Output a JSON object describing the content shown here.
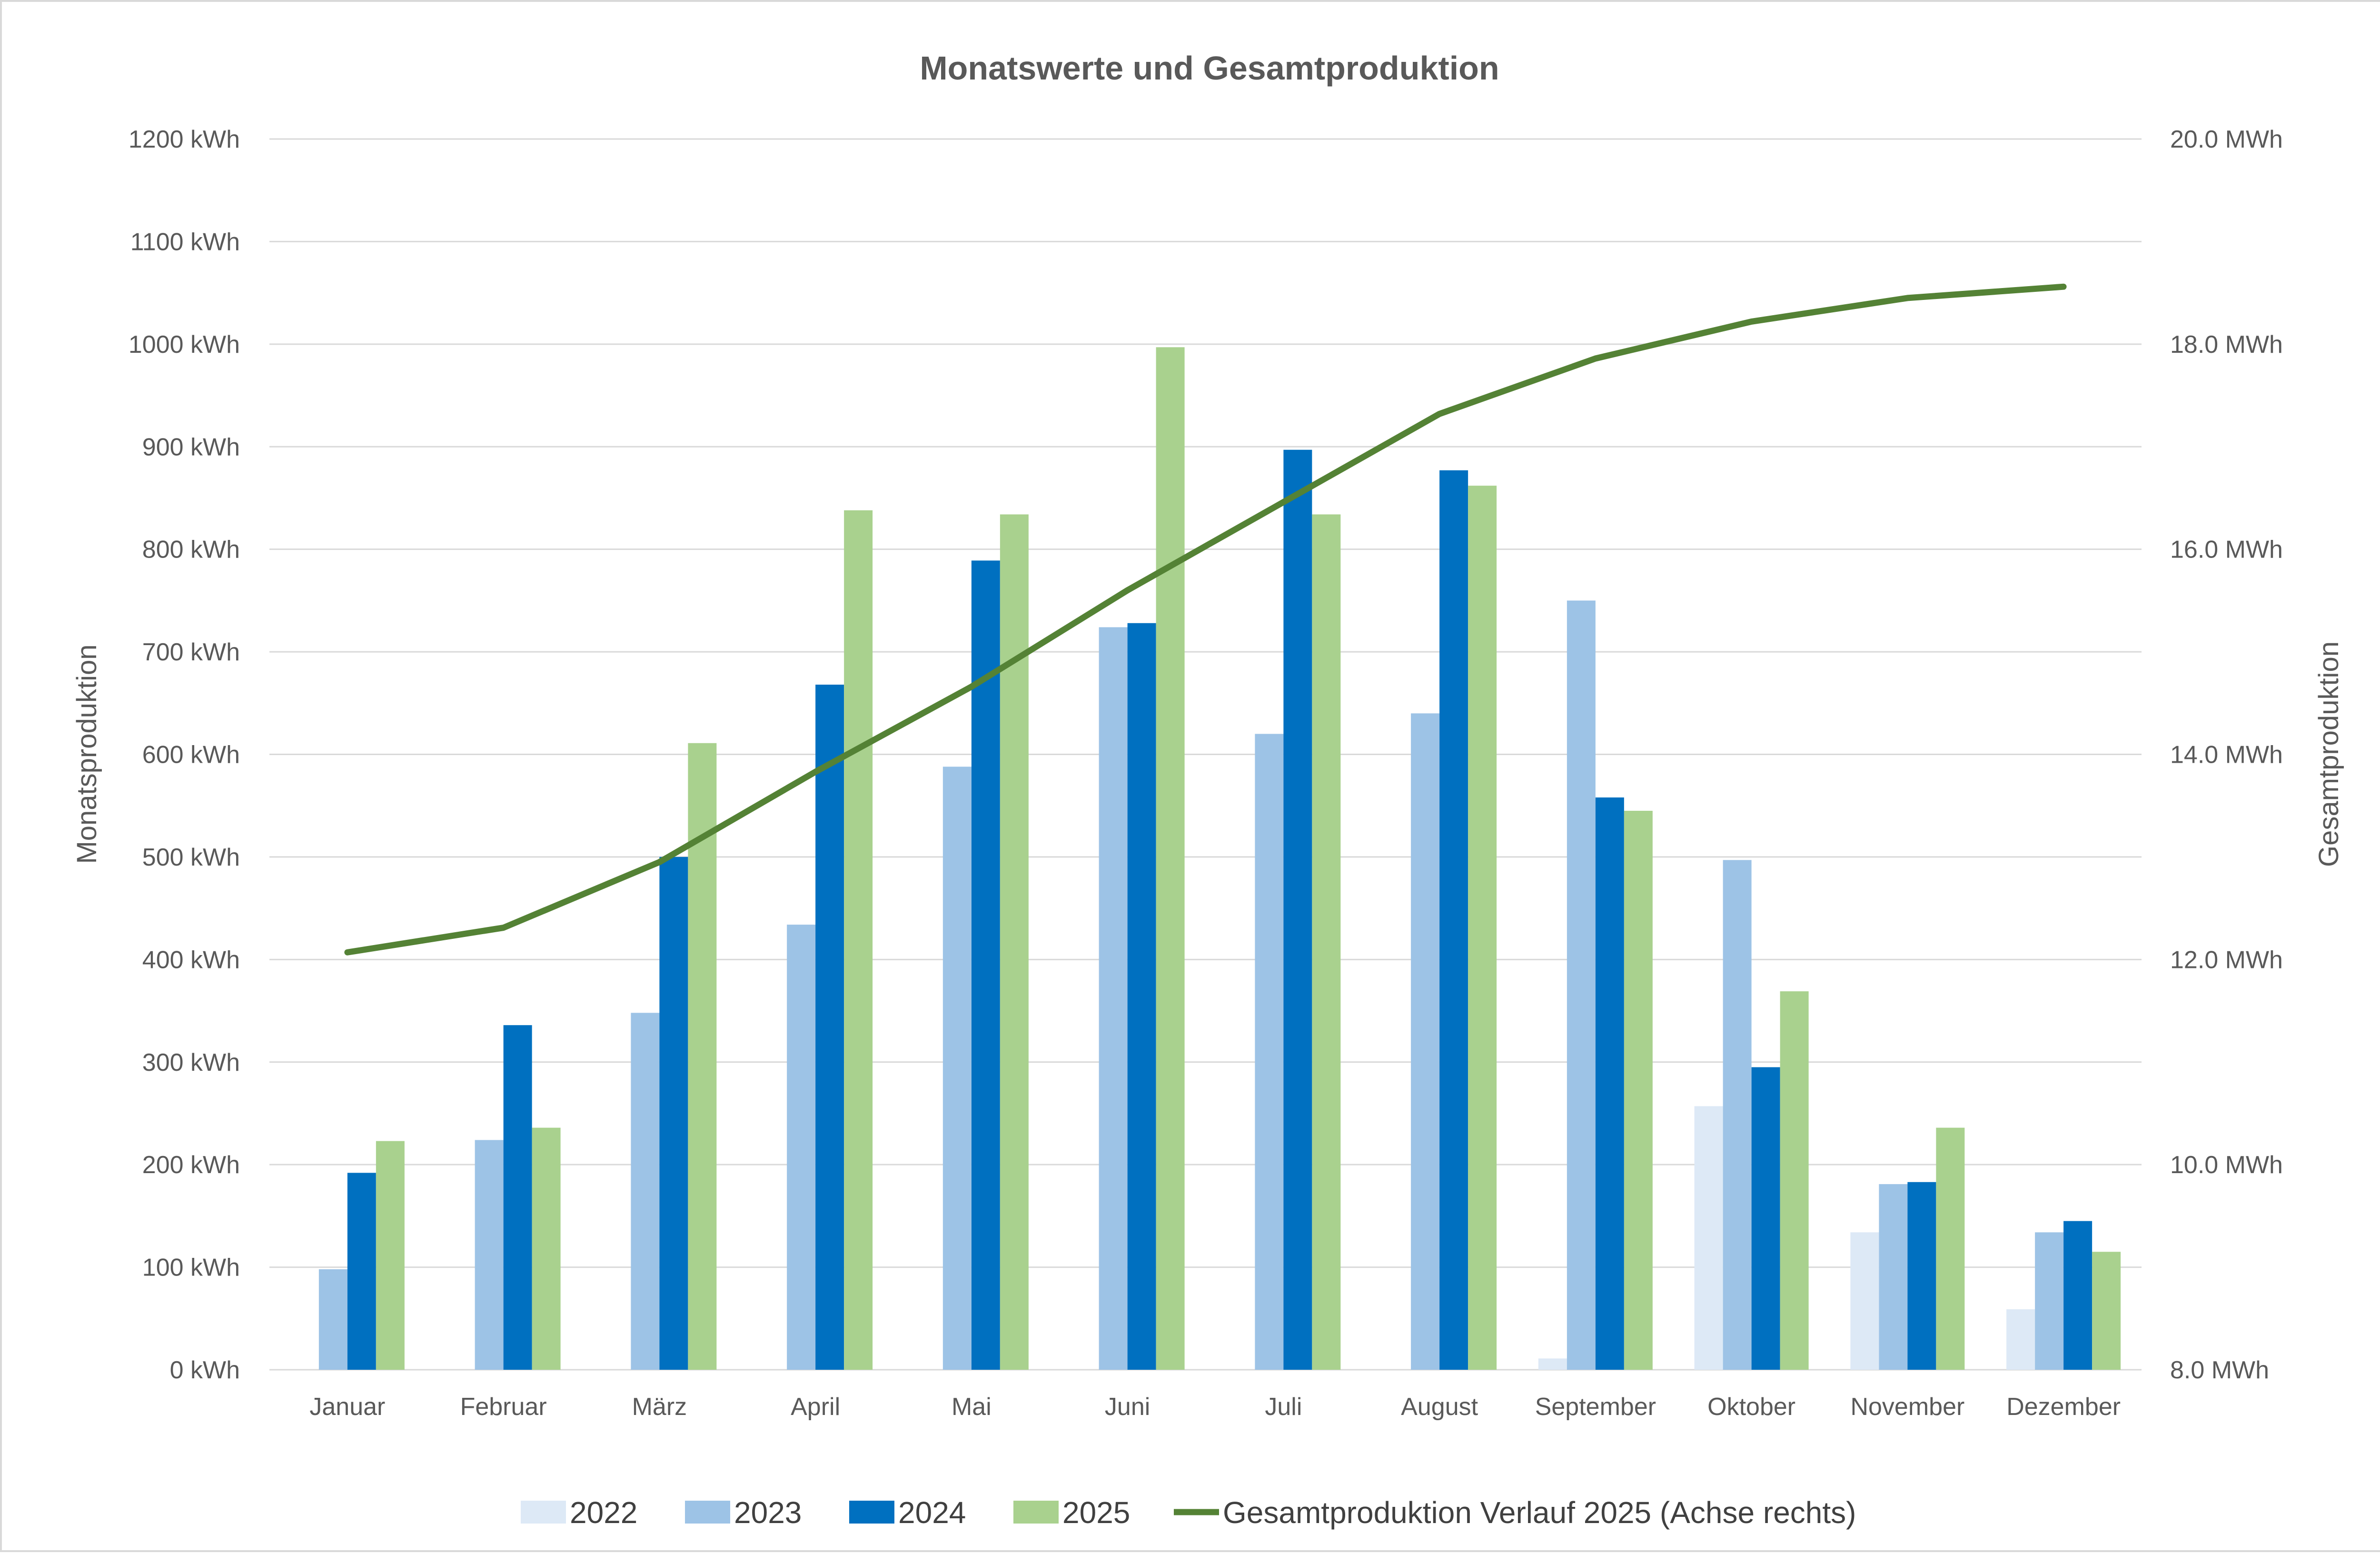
{
  "chart_data": {
    "type": "bar",
    "title": "Monatswerte und Gesamtproduktion",
    "ylabel": "Monatsproduktion",
    "y2label": "Gesamtproduktion",
    "categories": [
      "Januar",
      "Februar",
      "März",
      "April",
      "Mai",
      "Juni",
      "Juli",
      "August",
      "September",
      "Oktober",
      "November",
      "Dezember"
    ],
    "ylim": [
      0,
      1200
    ],
    "y_ticks": [
      0,
      100,
      200,
      300,
      400,
      500,
      600,
      700,
      800,
      900,
      1000,
      1100,
      1200
    ],
    "y_tick_labels": [
      "0 kWh",
      "100 kWh",
      "200 kWh",
      "300 kWh",
      "400 kWh",
      "500 kWh",
      "600 kWh",
      "700 kWh",
      "800 kWh",
      "900 kWh",
      "1000 kWh",
      "1100 kWh",
      "1200 kWh"
    ],
    "y2lim": [
      8.0,
      20.0
    ],
    "y2_ticks": [
      8.0,
      10.0,
      12.0,
      14.0,
      16.0,
      18.0,
      20.0
    ],
    "y2_tick_labels": [
      "8.0 MWh",
      "10.0 MWh",
      "12.0 MWh",
      "14.0 MWh",
      "16.0 MWh",
      "18.0 MWh",
      "20.0 MWh"
    ],
    "grid": true,
    "legend_position": "bottom",
    "series": [
      {
        "name": "2022",
        "color": "#dde9f6",
        "values": [
          0,
          0,
          0,
          0,
          0,
          0,
          0,
          0,
          11,
          257,
          134,
          59
        ]
      },
      {
        "name": "2023",
        "color": "#9dc3e6",
        "values": [
          98,
          224,
          348,
          434,
          588,
          724,
          620,
          640,
          750,
          497,
          181,
          134
        ]
      },
      {
        "name": "2024",
        "color": "#0070c0",
        "values": [
          192,
          336,
          500,
          668,
          789,
          728,
          897,
          877,
          558,
          295,
          183,
          145
        ]
      },
      {
        "name": "2025",
        "color": "#a9d18e",
        "values": [
          223,
          236,
          611,
          838,
          834,
          997,
          834,
          862,
          545,
          369,
          236,
          115
        ]
      }
    ],
    "line_series": {
      "name": "Gesamtproduktion Verlauf 2025 (Achse rechts)",
      "color": "#548235",
      "axis": "right",
      "values": [
        12.07,
        12.31,
        12.95,
        13.83,
        14.66,
        15.6,
        16.46,
        17.32,
        17.86,
        18.22,
        18.45,
        18.56
      ]
    }
  }
}
